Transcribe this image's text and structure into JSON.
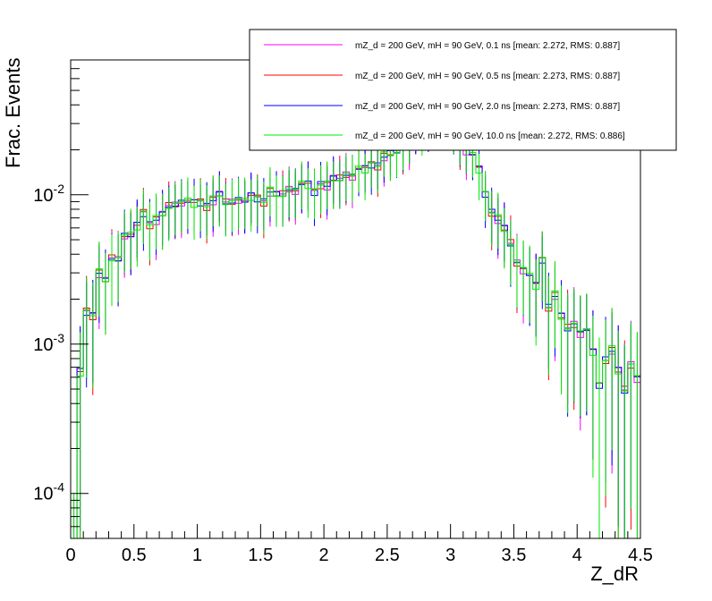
{
  "chart_data": {
    "type": "line",
    "title": "",
    "xlabel": "Z_dR",
    "ylabel": "Frac. Events",
    "xlim": [
      0,
      4.5
    ],
    "ylim": [
      5e-05,
      0.08
    ],
    "log_y": true,
    "grid": false,
    "legend_position": "top-right",
    "x_ticks": [
      "0",
      "0.5",
      "1",
      "1.5",
      "2",
      "2.5",
      "3",
      "3.5",
      "4",
      "4.5"
    ],
    "y_ticks": [
      {
        "value": 0.0001,
        "base": "10",
        "exp": "-4"
      },
      {
        "value": 0.001,
        "base": "10",
        "exp": "-3"
      },
      {
        "value": 0.01,
        "base": "10",
        "exp": "-2"
      }
    ],
    "bin_width": 0.05,
    "series": [
      {
        "name": "mZ_d = 200 GeV, mH = 90 GeV, 0.1 ns [mean: 2.272, RMS: 0.887]",
        "color": "#ff00ff"
      },
      {
        "name": "mZ_d = 200 GeV, mH = 90 GeV, 0.5 ns [mean: 2.273, RMS: 0.887]",
        "color": "#ff0000"
      },
      {
        "name": "mZ_d = 200 GeV, mH = 90 GeV, 2.0 ns [mean: 2.273, RMS: 0.887]",
        "color": "#0000ff"
      },
      {
        "name": "mZ_d = 200 GeV, mH = 90 GeV, 10.0 ns [mean: 2.272, RMS: 0.886]",
        "color": "#00ee00"
      }
    ],
    "base_values": [
      3e-05,
      0.00065,
      0.0017,
      0.0016,
      0.003,
      0.0026,
      0.0038,
      0.0038,
      0.0054,
      0.0052,
      0.0062,
      0.0078,
      0.0065,
      0.0068,
      0.0072,
      0.0085,
      0.0088,
      0.009,
      0.0088,
      0.0088,
      0.0092,
      0.0086,
      0.0092,
      0.0098,
      0.009,
      0.0092,
      0.0094,
      0.0088,
      0.0098,
      0.0098,
      0.0092,
      0.0105,
      0.0098,
      0.0102,
      0.0112,
      0.0108,
      0.0115,
      0.0118,
      0.0108,
      0.012,
      0.0115,
      0.0125,
      0.013,
      0.014,
      0.0135,
      0.0145,
      0.015,
      0.0165,
      0.016,
      0.018,
      0.0185,
      0.02,
      0.0215,
      0.023,
      0.026,
      0.028,
      0.03,
      0.033,
      0.035,
      0.033,
      0.028,
      0.023,
      0.02,
      0.018,
      0.015,
      0.0105,
      0.0078,
      0.0068,
      0.0058,
      0.0048,
      0.0036,
      0.0032,
      0.0028,
      0.0025,
      0.0038,
      0.0018,
      0.0021,
      0.0015,
      0.0013,
      0.0014,
      0.0012,
      0.0012,
      0.0009,
      0.00055,
      0.0008,
      0.0009,
      0.00065,
      0.0005,
      0.00075,
      0.0006
    ]
  },
  "legend": {
    "entries": [
      "mZ_d = 200 GeV, mH = 90 GeV, 0.1 ns [mean: 2.272, RMS: 0.887]",
      "mZ_d = 200 GeV, mH = 90 GeV, 0.5 ns [mean: 2.273, RMS: 0.887]",
      "mZ_d = 200 GeV, mH = 90 GeV, 2.0 ns [mean: 2.273, RMS: 0.887]",
      "mZ_d = 200 GeV, mH = 90 GeV, 10.0 ns [mean: 2.272, RMS: 0.886]"
    ]
  }
}
